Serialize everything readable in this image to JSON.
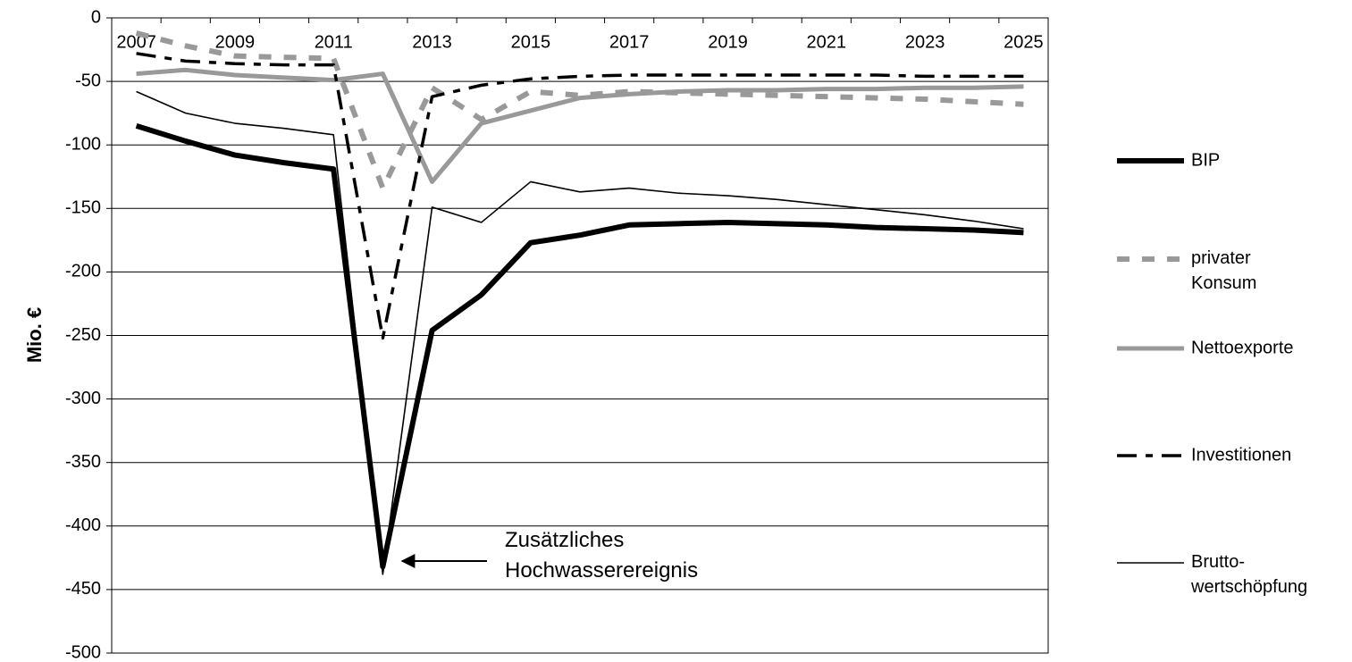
{
  "chart_data": {
    "type": "line",
    "y_label": "Mio. €",
    "annotation": "Zusätzliches Hochwasserereignis",
    "categories": [
      "2007",
      null,
      "2009",
      null,
      "2011",
      null,
      "2013",
      null,
      "2015",
      null,
      "2017",
      null,
      "2019",
      null,
      "2021",
      null,
      "2023",
      null,
      "2025"
    ],
    "ylim": [
      -500,
      0
    ],
    "yticks": [
      -500,
      -450,
      -400,
      -350,
      -300,
      -250,
      -200,
      -150,
      -100,
      -50,
      0
    ],
    "grid": true,
    "legend": "right",
    "series": [
      {
        "name": "BIP",
        "color": "#000000",
        "values": [
          -85,
          -97,
          -108,
          -114,
          -119,
          -432,
          -246,
          -218,
          -177,
          -171,
          -163,
          -162,
          -161,
          -162,
          -163,
          -165,
          -166,
          -167,
          -169
        ]
      },
      {
        "name": "privater Konsum",
        "color": "#999999",
        "values": [
          -12,
          -22,
          -30,
          -31,
          -32,
          -134,
          -55,
          -80,
          -58,
          -61,
          -58,
          -59,
          -60,
          -61,
          -62,
          -63,
          -64,
          -66,
          -68
        ]
      },
      {
        "name": "Nettoexporte",
        "color": "#999999",
        "values": [
          -44,
          -41,
          -45,
          -47,
          -49,
          -44,
          -129,
          -83,
          -73,
          -63,
          -60,
          -58,
          -57,
          -57,
          -56,
          -56,
          -55,
          -55,
          -54
        ]
      },
      {
        "name": "Investitionen",
        "color": "#000000",
        "values": [
          -28,
          -34,
          -36,
          -37,
          -37,
          -252,
          -62,
          -53,
          -48,
          -46,
          -45,
          -45,
          -45,
          -45,
          -45,
          -45,
          -46,
          -46,
          -46
        ]
      },
      {
        "name": "Brutto-wertschöpfung",
        "color": "#000000",
        "values": [
          -58,
          -75,
          -83,
          -87,
          -92,
          -438,
          -149,
          -161,
          -129,
          -137,
          -134,
          -138,
          -140,
          -143,
          -147,
          -151,
          -155,
          -160,
          -166
        ]
      }
    ]
  }
}
